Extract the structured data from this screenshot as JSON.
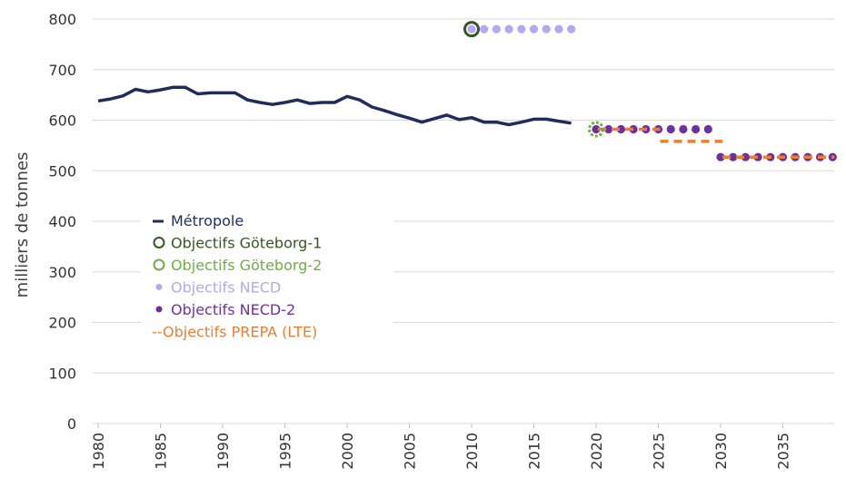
{
  "chart_data": {
    "type": "line",
    "ylabel": "milliers de tonnes",
    "ylim": [
      0,
      800
    ],
    "yticks": [
      "0",
      "100",
      "200",
      "300",
      "400",
      "500",
      "600",
      "700",
      "800"
    ],
    "xlim": [
      1980,
      2039
    ],
    "xticks": [
      "1980",
      "1985",
      "1990",
      "1995",
      "2000",
      "2005",
      "2010",
      "2015",
      "2020",
      "2025",
      "2030",
      "2035"
    ],
    "grid": true,
    "legend_position": "left-middle",
    "series": [
      {
        "name": "Métropole",
        "style": "line",
        "color": "#1f2d5c",
        "x": [
          1980,
          1981,
          1982,
          1983,
          1984,
          1985,
          1986,
          1987,
          1988,
          1989,
          1990,
          1991,
          1992,
          1993,
          1994,
          1995,
          1996,
          1997,
          1998,
          1999,
          2000,
          2001,
          2002,
          2003,
          2004,
          2005,
          2006,
          2007,
          2008,
          2009,
          2010,
          2011,
          2012,
          2013,
          2014,
          2015,
          2016,
          2017,
          2018
        ],
        "y": [
          638,
          642,
          648,
          661,
          656,
          660,
          665,
          665,
          652,
          654,
          654,
          654,
          640,
          635,
          631,
          635,
          640,
          633,
          635,
          635,
          647,
          640,
          626,
          619,
          611,
          604,
          596,
          603,
          610,
          601,
          605,
          596,
          596,
          591,
          596,
          602,
          602,
          598,
          594
        ]
      },
      {
        "name": "Objectifs Göteborg-1",
        "style": "open-circle",
        "color": "#375623",
        "x": [
          2010
        ],
        "y": [
          780
        ]
      },
      {
        "name": "Objectifs Göteborg-2",
        "style": "open-circle",
        "color": "#70ad47",
        "x": [
          2020
        ],
        "y": [
          582
        ]
      },
      {
        "name": "Objectifs NECD",
        "style": "dot",
        "color": "#b4a7f5",
        "x": [
          2010,
          2011,
          2012,
          2013,
          2014,
          2015,
          2016,
          2017,
          2018
        ],
        "y": [
          780,
          780,
          780,
          780,
          780,
          780,
          780,
          780,
          780
        ]
      },
      {
        "name": "Objectifs NECD-2",
        "style": "dot",
        "color": "#7030a0",
        "x": [
          2020,
          2021,
          2022,
          2023,
          2024,
          2025,
          2026,
          2027,
          2028,
          2029,
          2030,
          2031,
          2032,
          2033,
          2034,
          2035,
          2036,
          2037,
          2038,
          2039
        ],
        "y": [
          582,
          582,
          582,
          582,
          582,
          582,
          582,
          582,
          582,
          582,
          527,
          527,
          527,
          527,
          527,
          527,
          527,
          527,
          527,
          527
        ]
      },
      {
        "name": "--Objectifs PREPA (LTE)",
        "style": "dash",
        "color": "#ed7d31",
        "segments": [
          {
            "x": [
              2020,
              2025
            ],
            "y": 582
          },
          {
            "x": [
              2025,
              2030
            ],
            "y": 558
          },
          {
            "x": [
              2030,
              2039
            ],
            "y": 527
          }
        ]
      }
    ]
  }
}
